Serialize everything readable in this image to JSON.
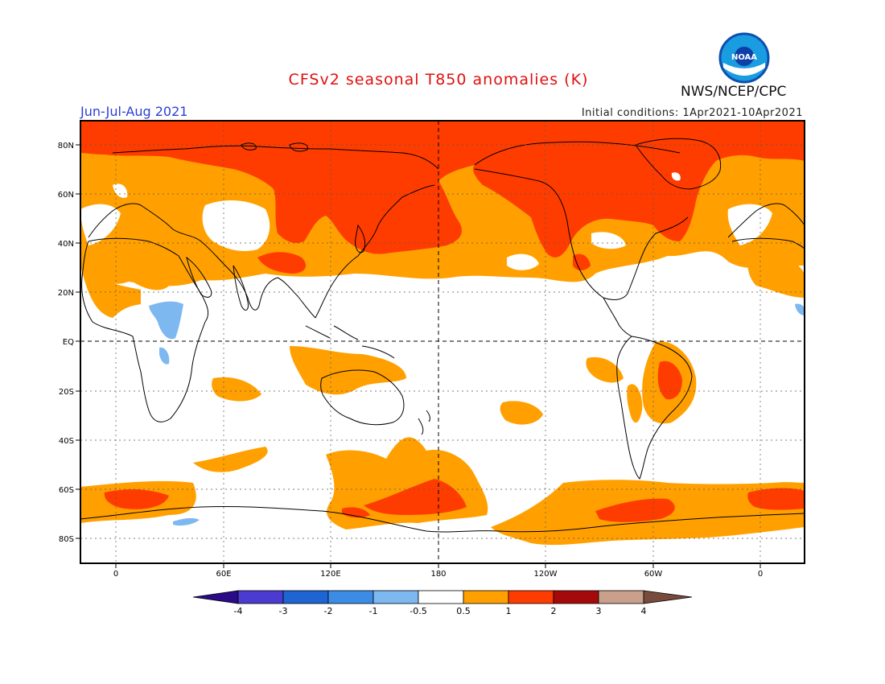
{
  "title": "CFSv2 seasonal T850 anomalies (K)",
  "season": "Jun-Jul-Aug 2021",
  "initial_conditions": "Initial conditions: 1Apr2021-10Apr2021",
  "agency": "NWS/NCEP/CPC",
  "logo_text": "NOAA",
  "axes": {
    "y_ticks": [
      "80N",
      "60N",
      "40N",
      "20N",
      "EQ",
      "20S",
      "40S",
      "60S",
      "80S"
    ],
    "x_ticks": [
      "0",
      "60E",
      "120E",
      "180",
      "120W",
      "60W",
      "0"
    ]
  },
  "colorbar": {
    "labels": [
      "-4",
      "-3",
      "-2",
      "-1",
      "-0.5",
      "0.5",
      "1",
      "2",
      "3",
      "4"
    ],
    "colors": {
      "lt_-4": "#2a0c86",
      "-4_-3": "#4b3bd0",
      "-3_-2": "#1e64d2",
      "-2_-1": "#3c8ce6",
      "-1_-0.5": "#7eb8f0",
      "-0.5_0.5": "#ffffff",
      "0.5_1": "#ffa000",
      "1_2": "#ff3c00",
      "2_3": "#a50a0a",
      "3_4": "#c8a08c",
      "gt_4": "#784b3c"
    }
  }
}
